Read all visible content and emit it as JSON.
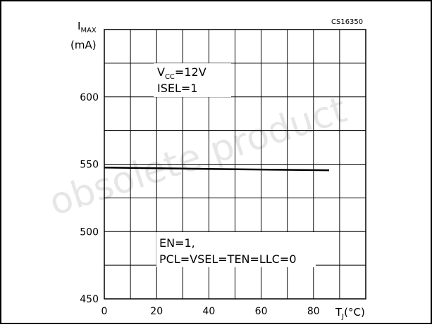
{
  "chart_data": {
    "type": "line",
    "figure_code": "CS16350",
    "ylabel": {
      "main": "I",
      "sub": "MAX",
      "unit": "(mA)"
    },
    "xlabel": {
      "main": "T",
      "sub": "J",
      "unit": "(°C)"
    },
    "xlim": [
      0,
      100
    ],
    "ylim": [
      450,
      650
    ],
    "x_ticks": [
      0,
      20,
      40,
      60,
      80
    ],
    "y_ticks": [
      450,
      500,
      550,
      600
    ],
    "x_grid_step": 10,
    "y_grid_step": 25,
    "grid": true,
    "annotations": [
      {
        "id": "vcc",
        "parts": [
          "V",
          "CC",
          "=12V"
        ]
      },
      {
        "id": "isel",
        "text": "ISEL=1"
      },
      {
        "id": "en",
        "text": "EN=1,"
      },
      {
        "id": "pcl",
        "text": "PCL=VSEL=TEN=LLC=0"
      }
    ],
    "series": [
      {
        "x": [
          0,
          20,
          40,
          60,
          86
        ],
        "y": [
          547.5,
          547,
          546.5,
          546,
          545.5
        ],
        "color": "#000000"
      }
    ]
  },
  "watermark": "obsolete product",
  "colors": {
    "line": "#000000",
    "grid": "#000000",
    "watermark": "#e6e6e6"
  }
}
